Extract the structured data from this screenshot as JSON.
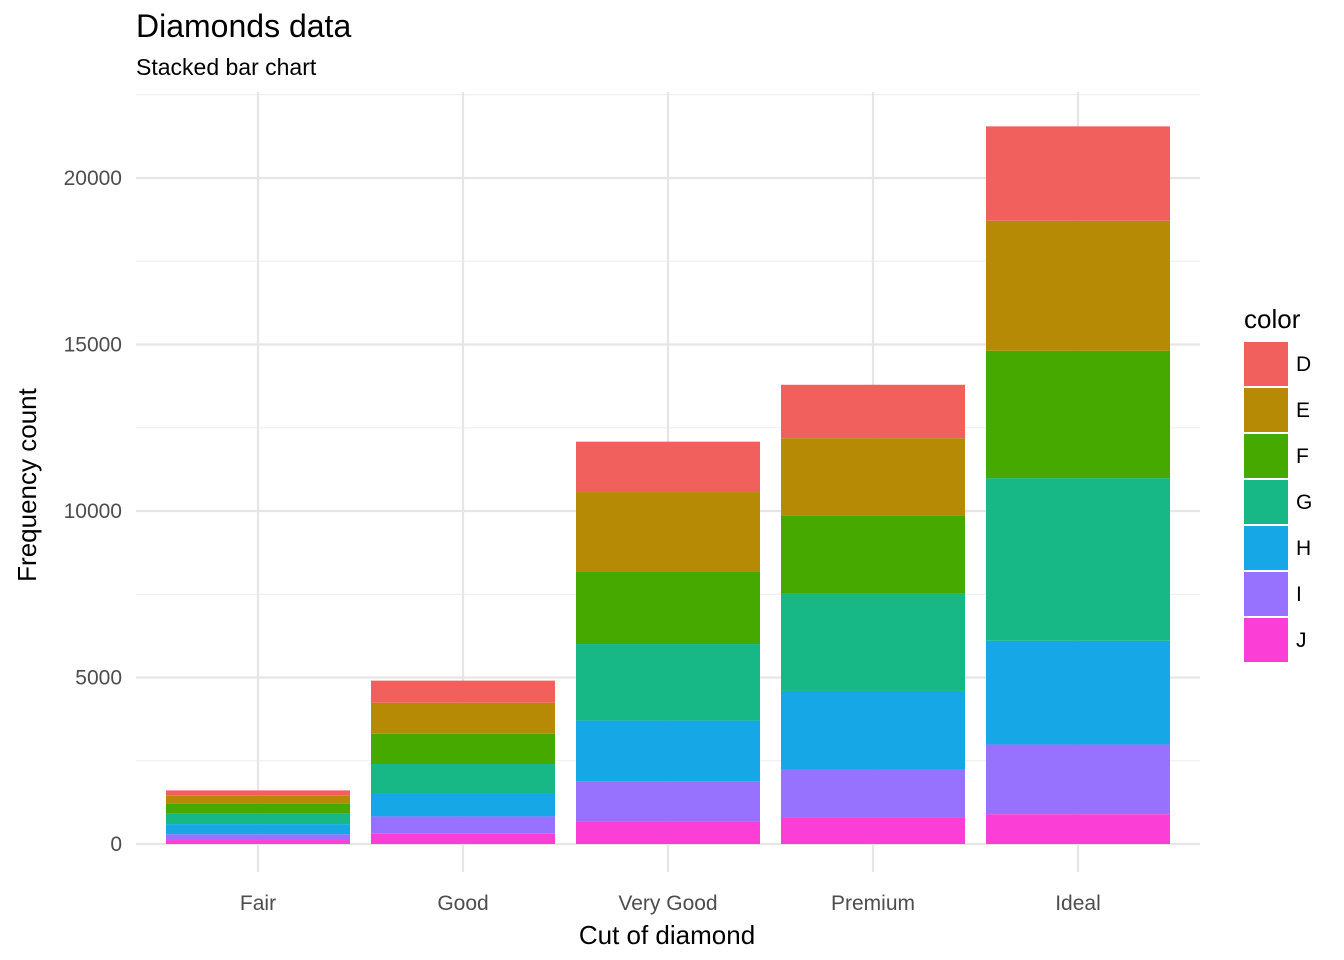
{
  "chart_data": {
    "type": "bar",
    "stacked": true,
    "title": "Diamonds data",
    "subtitle": "Stacked bar chart",
    "xlabel": "Cut of diamond",
    "ylabel": "Frequency count",
    "ylim": [
      0,
      22000
    ],
    "yticks": [
      0,
      5000,
      10000,
      15000,
      20000
    ],
    "grid": true,
    "legend": {
      "title": "color",
      "position": "right"
    },
    "categories": [
      "Fair",
      "Good",
      "Very Good",
      "Premium",
      "Ideal"
    ],
    "series": [
      {
        "name": "J",
        "color": "#FB3FD6",
        "values": [
          119,
          307,
          678,
          808,
          896
        ]
      },
      {
        "name": "I",
        "color": "#9771FF",
        "values": [
          175,
          522,
          1204,
          1428,
          2093
        ]
      },
      {
        "name": "H",
        "color": "#16A8E6",
        "values": [
          303,
          702,
          1824,
          2360,
          3115
        ]
      },
      {
        "name": "G",
        "color": "#17B886",
        "values": [
          314,
          871,
          2299,
          2924,
          4884
        ]
      },
      {
        "name": "F",
        "color": "#46A900",
        "values": [
          312,
          909,
          2164,
          2331,
          3826
        ]
      },
      {
        "name": "E",
        "color": "#B78A05",
        "values": [
          224,
          933,
          2400,
          2337,
          3903
        ]
      },
      {
        "name": "D",
        "color": "#F2605E",
        "values": [
          163,
          662,
          1513,
          1603,
          2834
        ]
      }
    ]
  }
}
